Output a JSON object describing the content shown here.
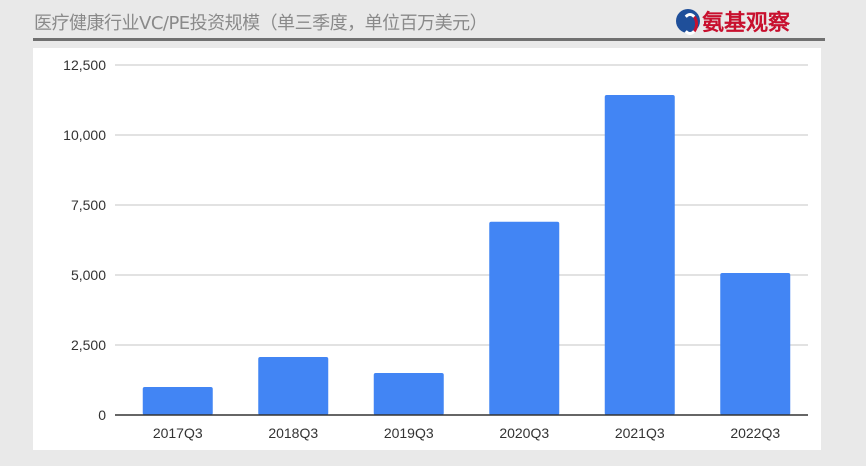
{
  "header": {
    "title": "医疗健康行业VC/PE投资规模（单三季度，单位百万美元）",
    "logo_text": "氨基观察"
  },
  "colors": {
    "bar": "#4285f4",
    "grid": "#d9d9d9",
    "axis": "#333333"
  },
  "chart_data": {
    "type": "bar",
    "title": "",
    "categories": [
      "2017Q3",
      "2018Q3",
      "2019Q3",
      "2020Q3",
      "2021Q3",
      "2022Q3"
    ],
    "values": [
      1000,
      2070,
      1500,
      6900,
      11430,
      5070
    ],
    "ylim": [
      0,
      12500
    ],
    "yticks": [
      0,
      2500,
      5000,
      7500,
      10000,
      12500
    ],
    "ytick_labels": [
      "0",
      "2,500",
      "5,000",
      "7,500",
      "10,000",
      "12,500"
    ],
    "grid": true,
    "legend": "none"
  }
}
